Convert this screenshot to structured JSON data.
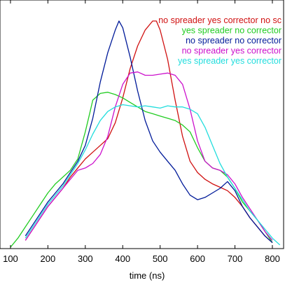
{
  "chart_data": {
    "type": "line",
    "title": "",
    "xlabel": "time (ns)",
    "ylabel": "",
    "xlim": [
      72,
      830
    ],
    "ylim": [
      0,
      1
    ],
    "x_ticks": [
      100,
      200,
      300,
      400,
      500,
      600,
      700,
      800
    ],
    "y_ticks": [],
    "grid": false,
    "legend_position": "top-right",
    "series": [
      {
        "name": "no  spreader yes corrector no sc",
        "color": "#d01010",
        "x": [
          140,
          160,
          180,
          200,
          220,
          240,
          260,
          280,
          300,
          320,
          340,
          360,
          380,
          400,
          420,
          440,
          460,
          480,
          490,
          500,
          520,
          540,
          560,
          580,
          600,
          620,
          640,
          660,
          680,
          700,
          720,
          740,
          760,
          780,
          800
        ],
        "y": [
          0.03,
          0.08,
          0.13,
          0.18,
          0.22,
          0.26,
          0.31,
          0.35,
          0.39,
          0.42,
          0.45,
          0.48,
          0.55,
          0.66,
          0.79,
          0.89,
          0.96,
          1.0,
          1.0,
          0.96,
          0.83,
          0.65,
          0.49,
          0.38,
          0.33,
          0.3,
          0.28,
          0.265,
          0.25,
          0.22,
          0.18,
          0.13,
          0.09,
          0.05,
          0.02
        ]
      },
      {
        "name": "yes spreader no  corrector",
        "color": "#22cc22",
        "x": [
          100,
          120,
          140,
          160,
          180,
          200,
          220,
          240,
          260,
          280,
          300,
          310,
          320,
          340,
          360,
          380,
          400,
          420,
          440,
          460,
          480,
          500,
          520,
          540,
          560,
          580,
          600,
          620,
          640,
          660,
          680,
          700,
          720,
          740,
          760,
          780,
          800
        ],
        "y": [
          0.0,
          0.04,
          0.09,
          0.14,
          0.19,
          0.24,
          0.28,
          0.31,
          0.34,
          0.39,
          0.51,
          0.58,
          0.65,
          0.68,
          0.685,
          0.675,
          0.66,
          0.64,
          0.62,
          0.6,
          0.59,
          0.58,
          0.57,
          0.56,
          0.54,
          0.51,
          0.44,
          0.38,
          0.35,
          0.34,
          0.31,
          0.26,
          0.2,
          0.16,
          0.12,
          0.07,
          0.02
        ]
      },
      {
        "name": "no  spreader no  corrector",
        "color": "#001a99",
        "x": [
          140,
          160,
          180,
          200,
          220,
          240,
          260,
          280,
          300,
          320,
          340,
          360,
          380,
          390,
          400,
          420,
          440,
          460,
          480,
          500,
          520,
          540,
          560,
          580,
          600,
          620,
          640,
          660,
          680,
          700,
          720,
          740,
          760,
          780,
          800
        ],
        "y": [
          0.05,
          0.1,
          0.15,
          0.2,
          0.24,
          0.28,
          0.33,
          0.38,
          0.45,
          0.57,
          0.73,
          0.86,
          0.96,
          1.0,
          0.97,
          0.84,
          0.69,
          0.56,
          0.47,
          0.42,
          0.38,
          0.34,
          0.28,
          0.23,
          0.21,
          0.22,
          0.24,
          0.26,
          0.29,
          0.25,
          0.18,
          0.13,
          0.09,
          0.05,
          0.02
        ]
      },
      {
        "name": "no  spreader yes corrector",
        "color": "#cc11cc",
        "x": [
          140,
          160,
          180,
          200,
          220,
          240,
          260,
          280,
          300,
          320,
          340,
          360,
          380,
          400,
          420,
          440,
          460,
          480,
          500,
          520,
          540,
          560,
          580,
          600,
          620,
          640,
          660,
          680,
          700,
          720,
          740,
          760,
          780,
          800
        ],
        "y": [
          0.03,
          0.08,
          0.13,
          0.18,
          0.22,
          0.26,
          0.3,
          0.34,
          0.35,
          0.37,
          0.41,
          0.49,
          0.62,
          0.72,
          0.77,
          0.775,
          0.76,
          0.76,
          0.765,
          0.77,
          0.76,
          0.72,
          0.61,
          0.47,
          0.38,
          0.35,
          0.34,
          0.32,
          0.28,
          0.22,
          0.17,
          0.12,
          0.07,
          0.03
        ]
      },
      {
        "name": "yes spreader yes corrector",
        "color": "#22dddd",
        "x": [
          140,
          160,
          180,
          200,
          220,
          240,
          260,
          280,
          300,
          320,
          340,
          360,
          380,
          400,
          420,
          440,
          460,
          480,
          500,
          520,
          540,
          560,
          580,
          600,
          620,
          640,
          660,
          680,
          700,
          720,
          740,
          760,
          780,
          800,
          820
        ],
        "y": [
          0.04,
          0.09,
          0.14,
          0.19,
          0.23,
          0.27,
          0.32,
          0.37,
          0.43,
          0.5,
          0.56,
          0.6,
          0.62,
          0.63,
          0.625,
          0.62,
          0.625,
          0.62,
          0.615,
          0.625,
          0.62,
          0.62,
          0.61,
          0.59,
          0.53,
          0.45,
          0.37,
          0.31,
          0.26,
          0.21,
          0.16,
          0.12,
          0.08,
          0.04,
          0.01
        ]
      }
    ]
  }
}
